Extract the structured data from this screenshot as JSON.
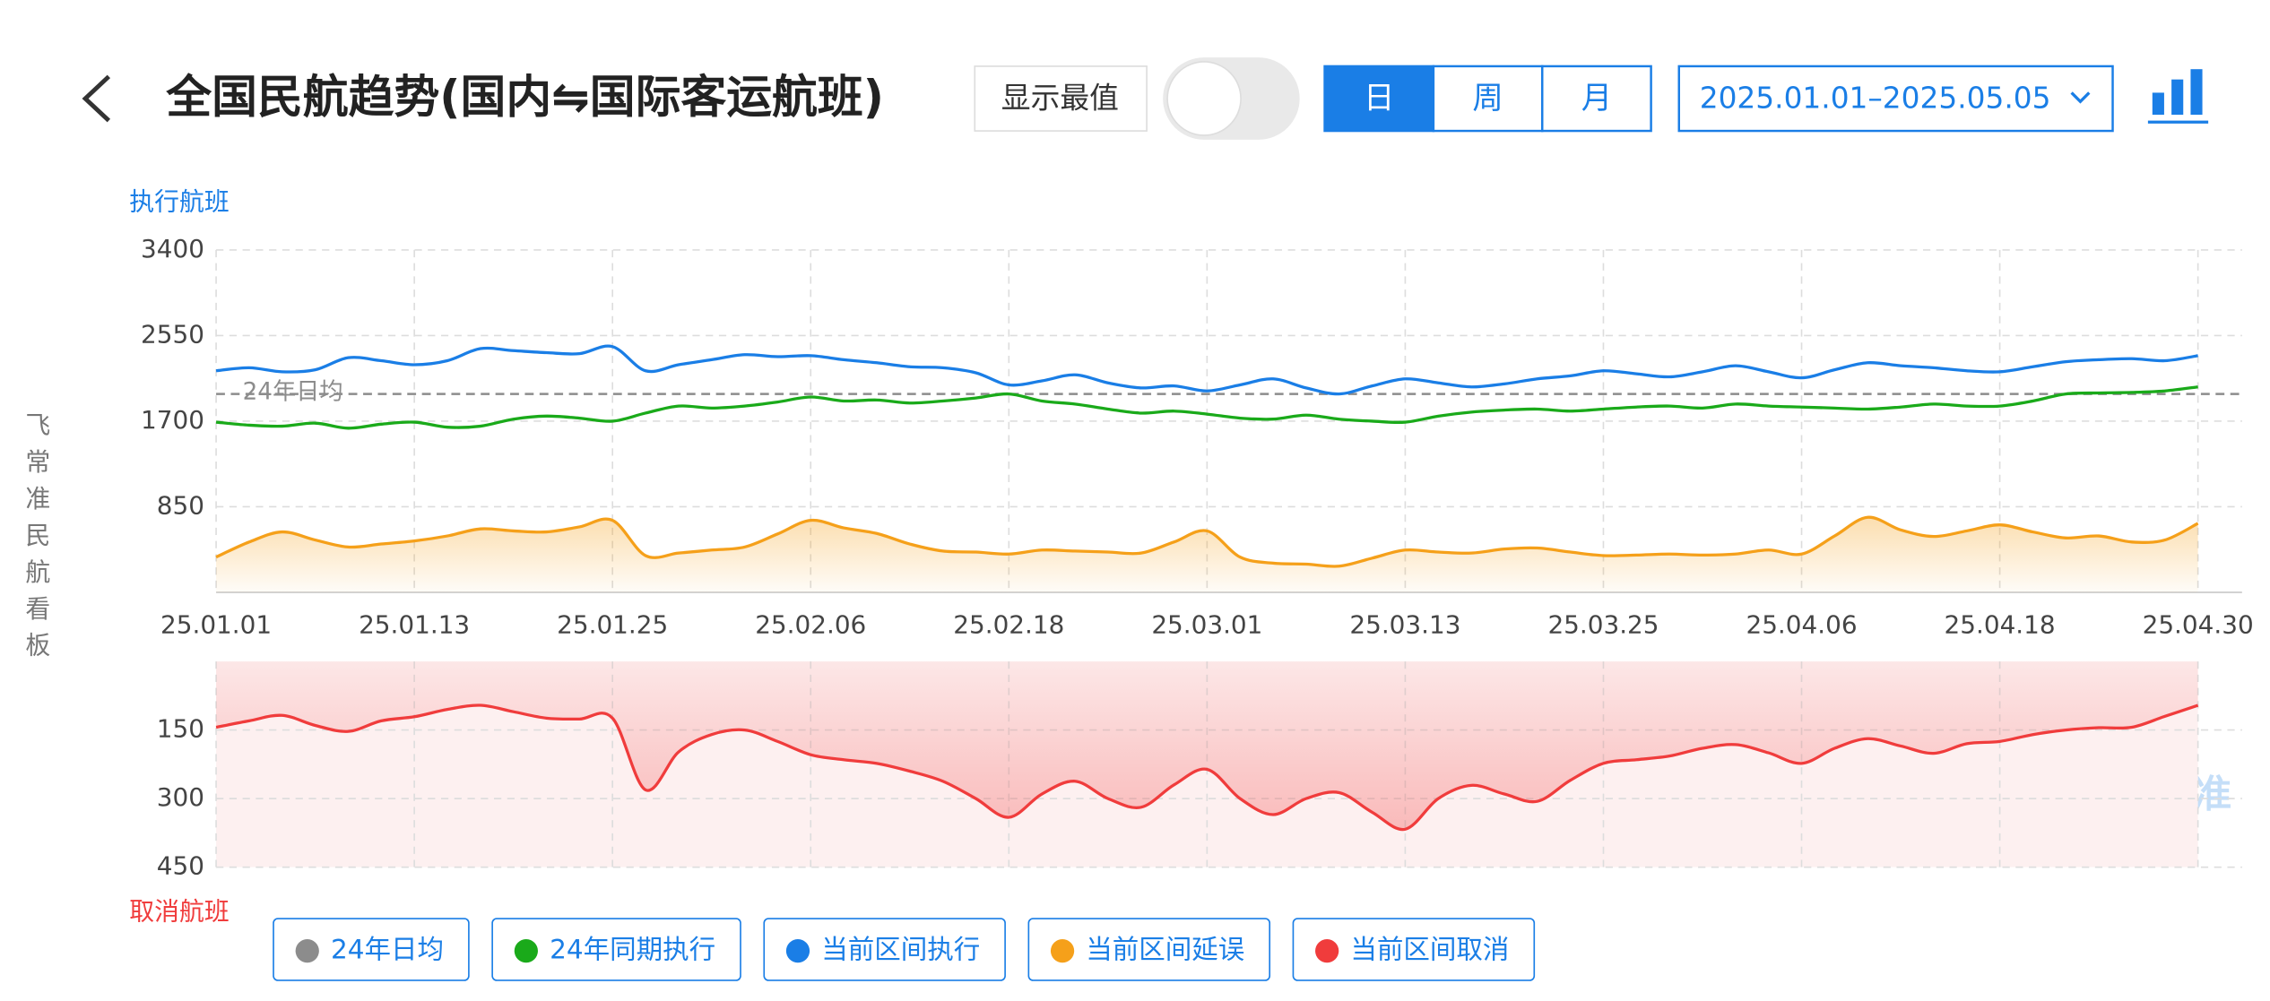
{
  "header": {
    "title": "全国民航趋势(国内⇋国际客运航班)",
    "toggle_label": "显示最值",
    "tabs": [
      "日",
      "周",
      "月"
    ],
    "active_tab": 0,
    "date_range": "2025.01.01–2025.05.05",
    "side_label": "飞常准民航看板",
    "watermark": "飞常准"
  },
  "chart_data": [
    {
      "type": "line",
      "ylabel": "执行航班",
      "categories": [
        "25.01.01",
        null,
        null,
        null,
        null,
        null,
        "25.01.13",
        null,
        null,
        null,
        null,
        null,
        "25.01.25",
        null,
        null,
        null,
        null,
        null,
        "25.02.06",
        null,
        null,
        null,
        null,
        null,
        "25.02.18",
        null,
        null,
        null,
        null,
        null,
        "25.03.01",
        null,
        null,
        null,
        null,
        null,
        "25.03.13",
        null,
        null,
        null,
        null,
        null,
        "25.03.25",
        null,
        null,
        null,
        null,
        null,
        "25.04.06",
        null,
        null,
        null,
        null,
        null,
        "25.04.18",
        null,
        null,
        null,
        null,
        null,
        "25.04.30"
      ],
      "ylim": [
        0,
        3400
      ],
      "yticks": [
        850,
        1700,
        2550,
        3400
      ],
      "grid": true,
      "reference_line": {
        "name": "24年日均",
        "value": 1970,
        "color": "#8c8c8c"
      },
      "series": [
        {
          "name": "24年同期执行",
          "color": "#1aaa1a",
          "values": [
            1690,
            1660,
            1650,
            1680,
            1630,
            1670,
            1690,
            1640,
            1650,
            1720,
            1750,
            1730,
            1700,
            1780,
            1850,
            1830,
            1850,
            1890,
            1940,
            1900,
            1910,
            1880,
            1900,
            1930,
            1970,
            1900,
            1870,
            1820,
            1780,
            1800,
            1770,
            1730,
            1720,
            1760,
            1720,
            1700,
            1690,
            1750,
            1790,
            1810,
            1820,
            1800,
            1820,
            1840,
            1850,
            1830,
            1870,
            1850,
            1840,
            1830,
            1820,
            1840,
            1870,
            1850,
            1850,
            1900,
            1970,
            1980,
            1985,
            2000,
            2040
          ]
        },
        {
          "name": "当前区间执行",
          "color": "#1a7ee6",
          "values": [
            2200,
            2230,
            2190,
            2210,
            2330,
            2300,
            2260,
            2300,
            2420,
            2400,
            2380,
            2370,
            2440,
            2200,
            2260,
            2310,
            2360,
            2340,
            2350,
            2310,
            2280,
            2240,
            2230,
            2180,
            2060,
            2100,
            2160,
            2080,
            2030,
            2050,
            2000,
            2060,
            2120,
            2030,
            1970,
            2050,
            2120,
            2080,
            2040,
            2070,
            2120,
            2150,
            2200,
            2170,
            2140,
            2190,
            2250,
            2190,
            2130,
            2210,
            2280,
            2250,
            2230,
            2200,
            2190,
            2240,
            2290,
            2310,
            2320,
            2300,
            2350
          ]
        },
        {
          "name": "当前区间延误",
          "color": "#f5a01a",
          "fill": true,
          "values": [
            350,
            500,
            600,
            520,
            450,
            480,
            510,
            560,
            630,
            610,
            600,
            650,
            715,
            365,
            390,
            420,
            450,
            580,
            715,
            640,
            585,
            480,
            410,
            400,
            380,
            420,
            410,
            400,
            390,
            500,
            610,
            350,
            290,
            280,
            260,
            340,
            420,
            400,
            390,
            430,
            440,
            400,
            365,
            370,
            380,
            370,
            380,
            420,
            380,
            560,
            745,
            620,
            555,
            610,
            670,
            600,
            540,
            560,
            500,
            520,
            685
          ]
        }
      ]
    },
    {
      "type": "area",
      "ylabel": "取消航班",
      "ylim": [
        0,
        450
      ],
      "inverted": true,
      "yticks": [
        150,
        300,
        450
      ],
      "grid": true,
      "series": [
        {
          "name": "当前区间取消",
          "color": "#f03c3c",
          "values": [
            144,
            130,
            118,
            140,
            153,
            130,
            121,
            105,
            96,
            110,
            124,
            126,
            124,
            281,
            198,
            160,
            150,
            175,
            204,
            215,
            223,
            240,
            262,
            300,
            341,
            290,
            262,
            300,
            319,
            270,
            236,
            300,
            335,
            300,
            287,
            330,
            367,
            300,
            271,
            290,
            306,
            260,
            223,
            215,
            207,
            190,
            182,
            200,
            223,
            190,
            169,
            185,
            201,
            180,
            175,
            160,
            150,
            145,
            144,
            120,
            96
          ]
        }
      ]
    }
  ]
}
